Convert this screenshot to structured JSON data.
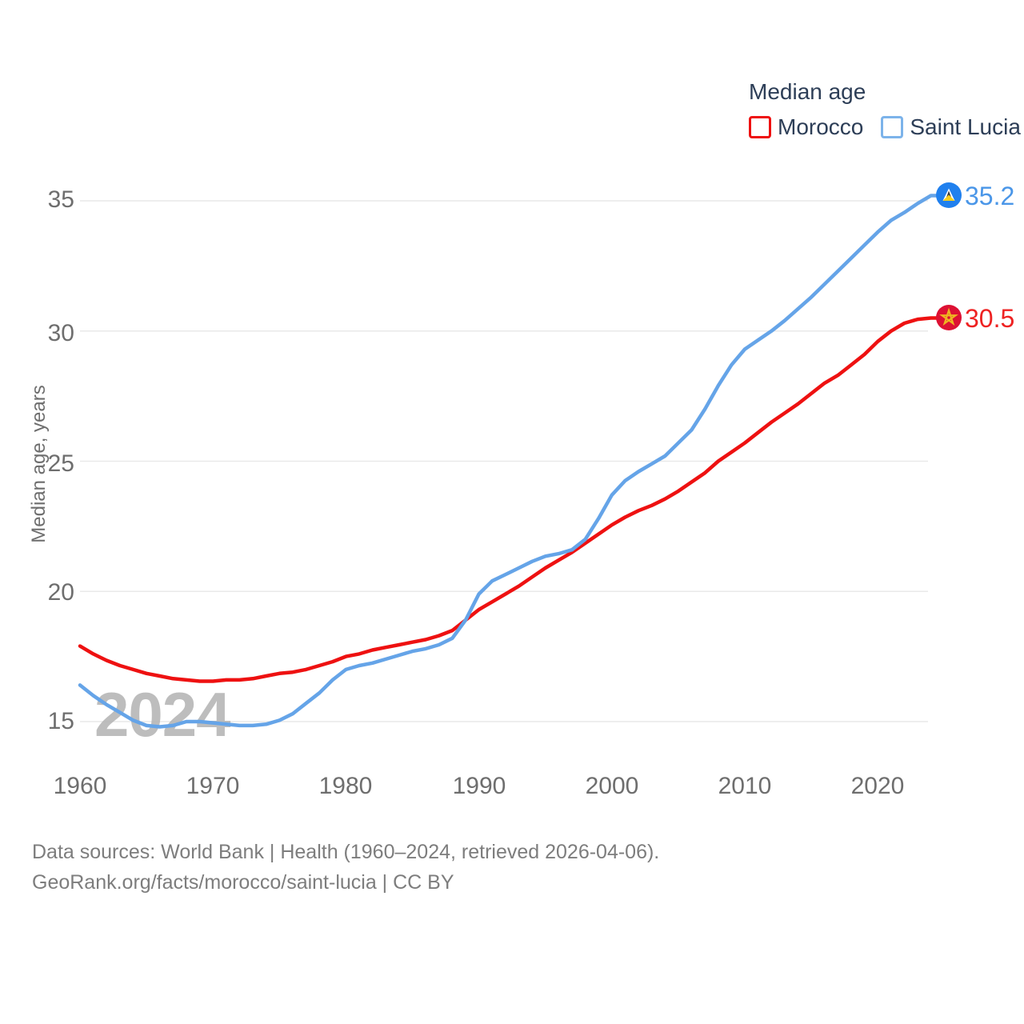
{
  "legend": {
    "title": "Median age",
    "series": [
      {
        "label": "Morocco",
        "color": "#ee1111"
      },
      {
        "label": "Saint Lucia",
        "color": "#65a4e8"
      }
    ]
  },
  "y_axis": {
    "label": "Median age, years",
    "ticks": [
      35,
      30,
      25,
      20,
      15
    ]
  },
  "x_axis": {
    "ticks": [
      1960,
      1970,
      1980,
      1990,
      2000,
      2010,
      2020
    ]
  },
  "watermark": "2024",
  "end_labels": {
    "saint_lucia": "35.2",
    "morocco": "30.5"
  },
  "footer": {
    "line1": "Data sources: World Bank | Health (1960–2024, retrieved 2026-04-06).",
    "line2": "GeoRank.org/facts/morocco/saint-lucia | CC BY"
  },
  "colors": {
    "morocco_line": "#ee1111",
    "morocco_label": "#ee2222",
    "morocco_marker_fill": "#dd1133",
    "morocco_star": "#eeb422",
    "saint_lucia_line": "#65a4e8",
    "saint_lucia_label": "#4a96e8",
    "saint_lucia_marker_fill": "#2080ee",
    "gridline": "#e9e9e9",
    "tick_text": "#6e6e6e",
    "legend_text": "#2d3e57",
    "watermark_text": "#b6b6b6",
    "footer_text": "#7d7d7d"
  },
  "chart_data": {
    "type": "line",
    "title": "Median age",
    "ylabel": "Median age, years",
    "xlabel": "",
    "x_range": [
      1960,
      2024
    ],
    "ylim": [
      13,
      37
    ],
    "y_gridlines": [
      15,
      20,
      25,
      30,
      35
    ],
    "grid": "horizontal-only",
    "legend_position": "top-right",
    "x": [
      1960,
      1961,
      1962,
      1963,
      1964,
      1965,
      1966,
      1967,
      1968,
      1969,
      1970,
      1971,
      1972,
      1973,
      1974,
      1975,
      1976,
      1977,
      1978,
      1979,
      1980,
      1981,
      1982,
      1983,
      1984,
      1985,
      1986,
      1987,
      1988,
      1989,
      1990,
      1991,
      1992,
      1993,
      1994,
      1995,
      1996,
      1997,
      1998,
      1999,
      2000,
      2001,
      2002,
      2003,
      2004,
      2005,
      2006,
      2007,
      2008,
      2009,
      2010,
      2011,
      2012,
      2013,
      2014,
      2015,
      2016,
      2017,
      2018,
      2019,
      2020,
      2021,
      2022,
      2023,
      2024
    ],
    "series": [
      {
        "name": "Morocco",
        "color": "#ee1111",
        "end_value": 30.5,
        "end_label": "30.5",
        "values": [
          17.9,
          17.6,
          17.35,
          17.15,
          17.0,
          16.85,
          16.75,
          16.65,
          16.6,
          16.55,
          16.55,
          16.6,
          16.6,
          16.65,
          16.75,
          16.85,
          16.9,
          17.0,
          17.15,
          17.3,
          17.5,
          17.6,
          17.75,
          17.85,
          17.95,
          18.05,
          18.15,
          18.3,
          18.5,
          18.9,
          19.3,
          19.6,
          19.9,
          20.2,
          20.55,
          20.9,
          21.2,
          21.5,
          21.85,
          22.2,
          22.55,
          22.85,
          23.1,
          23.3,
          23.55,
          23.85,
          24.2,
          24.55,
          25.0,
          25.35,
          25.7,
          26.1,
          26.5,
          26.85,
          27.2,
          27.6,
          28.0,
          28.3,
          28.7,
          29.1,
          29.6,
          30.0,
          30.3,
          30.45,
          30.5
        ]
      },
      {
        "name": "Saint Lucia",
        "color": "#65a4e8",
        "end_value": 35.2,
        "end_label": "35.2",
        "values": [
          16.4,
          16.0,
          15.65,
          15.35,
          15.05,
          14.85,
          14.8,
          14.85,
          15.0,
          15.0,
          14.95,
          14.9,
          14.85,
          14.85,
          14.9,
          15.05,
          15.3,
          15.7,
          16.1,
          16.6,
          17.0,
          17.15,
          17.25,
          17.4,
          17.55,
          17.7,
          17.8,
          17.95,
          18.2,
          18.9,
          19.9,
          20.4,
          20.65,
          20.9,
          21.15,
          21.35,
          21.45,
          21.6,
          22.0,
          22.8,
          23.7,
          24.25,
          24.6,
          24.9,
          25.2,
          25.7,
          26.2,
          27.0,
          27.9,
          28.7,
          29.3,
          29.65,
          30.0,
          30.4,
          30.85,
          31.3,
          31.8,
          32.3,
          32.8,
          33.3,
          33.8,
          34.25,
          34.55,
          34.9,
          35.2
        ]
      }
    ]
  }
}
